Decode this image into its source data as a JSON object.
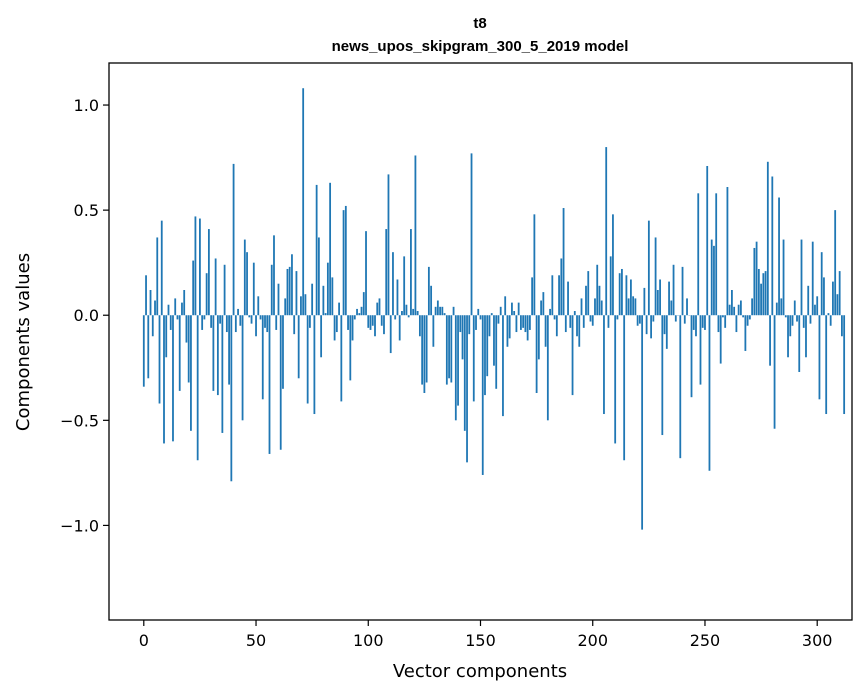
{
  "chart_data": {
    "type": "bar",
    "title": [
      "t8",
      "news_upos_skipgram_300_5_2019 model"
    ],
    "xlabel": "Vector components",
    "ylabel": "Components values",
    "xlim": [
      -15.5,
      315.5
    ],
    "ylim": [
      -1.45,
      1.2
    ],
    "xticks": [
      0,
      50,
      100,
      150,
      200,
      250,
      300
    ],
    "xtick_labels": [
      "0",
      "50",
      "100",
      "150",
      "200",
      "250",
      "300"
    ],
    "yticks": [
      -1.0,
      -0.5,
      0.0,
      0.5,
      1.0
    ],
    "ytick_labels": [
      "−1.0",
      "−0.5",
      "0.0",
      "0.5",
      "1.0"
    ],
    "bar_color": "#1f77b4",
    "grid": false,
    "values": [
      -0.34,
      0.19,
      -0.3,
      0.12,
      -0.1,
      0.07,
      0.37,
      -0.42,
      0.45,
      -0.61,
      -0.2,
      0.05,
      -0.07,
      -0.6,
      0.08,
      -0.02,
      -0.36,
      0.06,
      0.12,
      -0.13,
      -0.32,
      -0.55,
      0.26,
      0.47,
      -0.69,
      0.46,
      -0.07,
      -0.02,
      0.2,
      0.41,
      -0.06,
      -0.36,
      0.27,
      -0.38,
      -0.04,
      -0.56,
      0.24,
      -0.08,
      -0.33,
      -0.79,
      0.72,
      -0.08,
      0.03,
      -0.05,
      -0.5,
      0.36,
      0.3,
      -0.01,
      -0.04,
      0.25,
      -0.1,
      0.09,
      -0.02,
      -0.4,
      -0.06,
      -0.08,
      -0.66,
      0.24,
      0.38,
      -0.07,
      0.15,
      -0.64,
      -0.35,
      0.08,
      0.22,
      0.23,
      0.29,
      -0.09,
      0.21,
      -0.3,
      0.09,
      1.08,
      0.1,
      -0.42,
      -0.06,
      0.15,
      -0.47,
      0.62,
      0.37,
      -0.2,
      0.14,
      0.01,
      0.25,
      0.63,
      0.18,
      -0.12,
      -0.08,
      0.06,
      -0.41,
      0.5,
      0.52,
      -0.07,
      -0.31,
      -0.12,
      -0.02,
      0.03,
      0.01,
      0.04,
      0.11,
      0.4,
      -0.06,
      -0.07,
      -0.05,
      -0.1,
      0.06,
      0.08,
      -0.05,
      -0.09,
      0.41,
      0.67,
      -0.18,
      0.3,
      -0.02,
      0.17,
      -0.12,
      0.02,
      0.28,
      0.05,
      -0.01,
      0.41,
      0.03,
      0.76,
      0.02,
      -0.1,
      -0.33,
      -0.37,
      -0.32,
      0.23,
      0.14,
      -0.15,
      0.04,
      0.07,
      0.04,
      0.04,
      0.01,
      -0.33,
      -0.3,
      -0.32,
      0.04,
      -0.5,
      -0.43,
      -0.08,
      -0.21,
      -0.55,
      -0.7,
      -0.09,
      0.77,
      -0.41,
      -0.07,
      0.03,
      -0.02,
      -0.76,
      -0.38,
      -0.29,
      -0.1,
      0.01,
      -0.24,
      -0.35,
      -0.04,
      0.04,
      -0.48,
      0.09,
      -0.15,
      -0.11,
      0.06,
      0.02,
      -0.08,
      0.06,
      -0.07,
      -0.06,
      -0.08,
      -0.12,
      -0.07,
      0.18,
      0.48,
      -0.37,
      -0.21,
      0.07,
      0.11,
      -0.15,
      -0.5,
      0.03,
      0.19,
      -0.02,
      -0.1,
      0.19,
      0.27,
      0.51,
      -0.08,
      0.16,
      -0.06,
      -0.38,
      0.02,
      -0.1,
      -0.15,
      0.08,
      -0.06,
      0.14,
      0.21,
      -0.03,
      -0.05,
      0.08,
      0.24,
      0.14,
      0.07,
      -0.47,
      0.8,
      -0.06,
      0.28,
      0.48,
      -0.61,
      -0.02,
      0.2,
      0.22,
      -0.69,
      0.19,
      0.08,
      0.17,
      0.09,
      0.08,
      -0.05,
      -0.04,
      -1.02,
      0.13,
      -0.09,
      0.45,
      -0.11,
      -0.03,
      0.37,
      0.12,
      0.17,
      -0.57,
      -0.09,
      -0.16,
      0.16,
      0.07,
      0.24,
      -0.03,
      0.0,
      -0.68,
      0.23,
      -0.04,
      0.08,
      0.0,
      -0.39,
      -0.07,
      -0.1,
      0.58,
      -0.33,
      -0.06,
      -0.07,
      0.71,
      -0.74,
      0.36,
      0.33,
      0.58,
      -0.08,
      -0.23,
      -0.01,
      -0.06,
      0.61,
      0.05,
      0.12,
      0.04,
      -0.08,
      0.05,
      0.07,
      -0.01,
      -0.17,
      -0.05,
      -0.02,
      0.08,
      0.32,
      0.35,
      0.22,
      0.15,
      0.2,
      0.21,
      0.73,
      -0.24,
      0.66,
      -0.54,
      0.06,
      0.56,
      0.08,
      0.36,
      -0.01,
      -0.2,
      -0.1,
      -0.05,
      0.07,
      -0.03,
      -0.27,
      0.36,
      -0.06,
      -0.2,
      0.14,
      -0.04,
      0.35,
      0.05,
      0.09,
      -0.4,
      0.3,
      0.18,
      -0.47,
      0.01,
      -0.05,
      0.16,
      0.5,
      0.1,
      0.21,
      -0.1,
      -0.47
    ]
  }
}
